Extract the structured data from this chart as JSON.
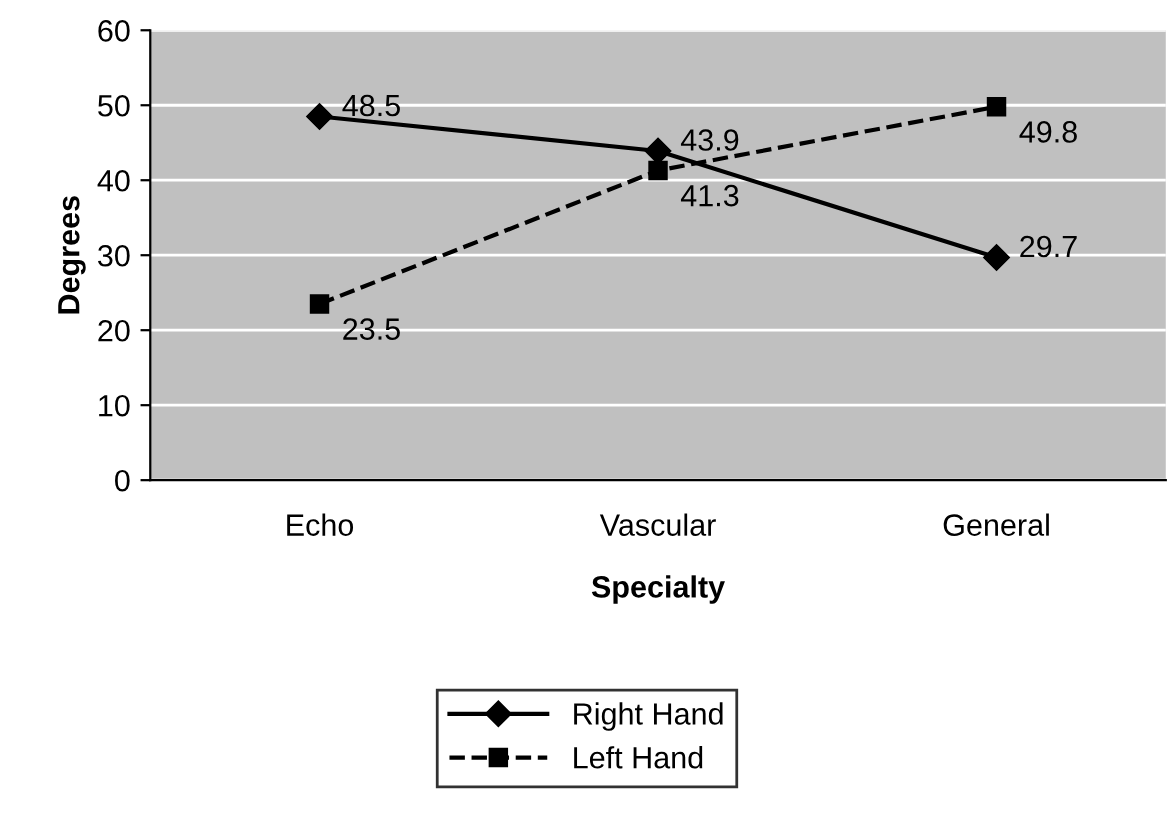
{
  "chart_data": {
    "type": "line",
    "xlabel": "Specialty",
    "ylabel": "Degrees",
    "categories": [
      "Echo",
      "Vascular",
      "General"
    ],
    "series": [
      {
        "name": "Right Hand",
        "color": "#000000",
        "values": [
          48.5,
          43.9,
          29.7
        ],
        "marker": "diamond",
        "line_style": "solid"
      },
      {
        "name": "Left Hand",
        "color": "#000000",
        "values": [
          23.5,
          41.3,
          49.8
        ],
        "marker": "square",
        "line_style": "dashed"
      }
    ],
    "ylim": [
      0,
      60
    ],
    "yticks": [
      0,
      10,
      20,
      30,
      40,
      50,
      60
    ],
    "grid": "y",
    "legend": "bottom",
    "data_labels": true
  }
}
